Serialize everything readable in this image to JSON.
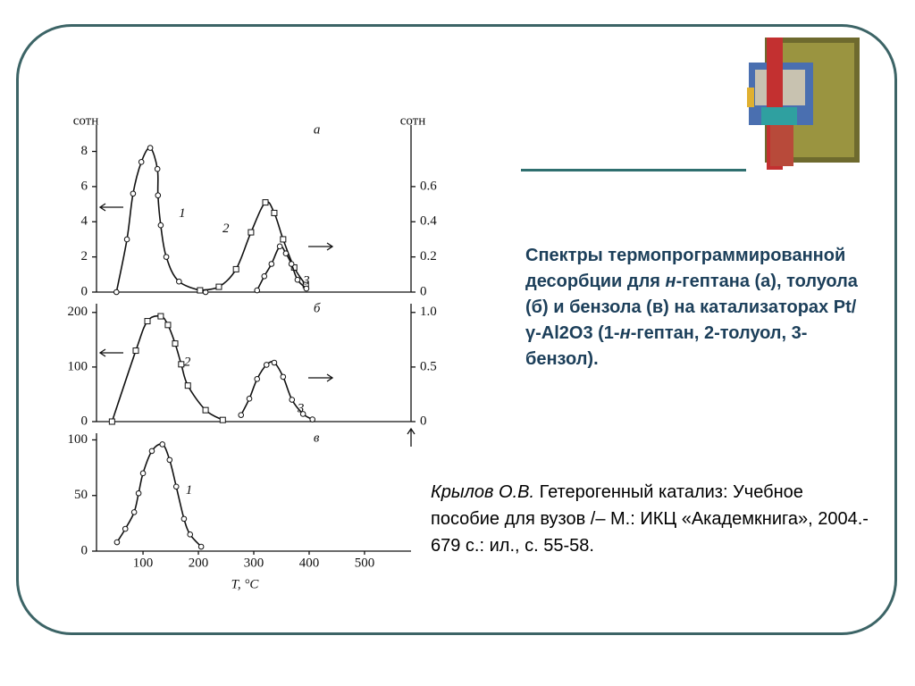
{
  "chart_data": [
    {
      "type": "line",
      "panel_label": "а",
      "ylabel": "cотн",
      "y2label": "cотн",
      "xlim": [
        16,
        584
      ],
      "ylim": [
        0,
        9.5
      ],
      "yticks": [
        0,
        2,
        4,
        6,
        8
      ],
      "y2lim": [
        0,
        0.95
      ],
      "y2ticks": [
        0,
        {
          "value": 0.2,
          "label": "0.2"
        },
        {
          "value": 0.4,
          "label": "0.4"
        },
        {
          "value": 0.6,
          "label": "0.6"
        }
      ],
      "series": [
        {
          "name": "1",
          "color": "#111111",
          "marker": "circle",
          "x": [
            52,
            71,
            82,
            97,
            113,
            126,
            127,
            132,
            142,
            165,
            213
          ],
          "values": [
            0,
            3.0,
            5.6,
            7.4,
            8.2,
            7.0,
            5.5,
            3.8,
            2.0,
            0.6,
            0
          ]
        },
        {
          "name": "2",
          "color": "#111111",
          "marker": "square",
          "axis": "y2",
          "x": [
            203,
            237,
            268,
            295,
            321,
            337,
            353,
            373,
            394
          ],
          "values": [
            0.01,
            0.03,
            0.13,
            0.34,
            0.51,
            0.45,
            0.3,
            0.14,
            0.04
          ]
        },
        {
          "name": "3",
          "color": "#111111",
          "marker": "circle",
          "axis": "y2",
          "x": [
            306,
            319,
            332,
            347,
            358,
            368,
            379,
            395
          ],
          "values": [
            0.01,
            0.09,
            0.16,
            0.26,
            0.22,
            0.16,
            0.07,
            0.02
          ]
        }
      ]
    },
    {
      "type": "line",
      "panel_label": "б",
      "xlim": [
        16,
        584
      ],
      "ylim": [
        0,
        216
      ],
      "yticks": [
        0,
        100,
        200
      ],
      "y2lim": [
        0,
        1.08
      ],
      "y2ticks": [
        0,
        {
          "value": 0.5,
          "label": "0.5"
        },
        {
          "value": 1,
          "label": "1.0"
        }
      ],
      "series": [
        {
          "name": "2",
          "color": "#111111",
          "marker": "square",
          "x": [
            44,
            87,
            108,
            132,
            145,
            158,
            169,
            181,
            213,
            244
          ],
          "values": [
            0,
            130,
            184,
            193,
            177,
            143,
            105,
            66,
            21,
            3
          ]
        },
        {
          "name": "3",
          "color": "#111111",
          "marker": "circle",
          "axis": "y2",
          "x": [
            277,
            292,
            306,
            323,
            337,
            353,
            369,
            389,
            406
          ],
          "values": [
            0.06,
            0.21,
            0.39,
            0.52,
            0.54,
            0.41,
            0.2,
            0.07,
            0.02
          ]
        }
      ]
    },
    {
      "type": "line",
      "panel_label": "в",
      "xlabel": "T, °C",
      "xlim": [
        16,
        584
      ],
      "xticks": [
        100,
        200,
        300,
        400,
        500
      ],
      "ylim": [
        0,
        106
      ],
      "yticks": [
        0,
        50,
        100
      ],
      "series": [
        {
          "name": "1",
          "color": "#111111",
          "marker": "circle",
          "x": [
            53,
            68,
            84,
            92,
            100,
            116,
            135,
            148,
            160,
            174,
            185,
            205
          ],
          "values": [
            8,
            20,
            35,
            52,
            70,
            90,
            96,
            82,
            58,
            29,
            15,
            4
          ]
        }
      ]
    }
  ],
  "caption": [
    "Спектры термопрограммированной десорбции для ",
    "н",
    "-гептана (а), толуола (б) и бензола (в) на катализаторах Pt/γ-Al2O3 (1-",
    "н",
    "-гептан, 2-толуол, 3-бензол)."
  ],
  "reference": {
    "author": "Крылов О.В.",
    "text": " Гетерогенный катализ: Учебное пособие для вузов /– М.: ИКЦ «Академкнига», 2004.- 679 с.: ил., с. 55-58."
  }
}
